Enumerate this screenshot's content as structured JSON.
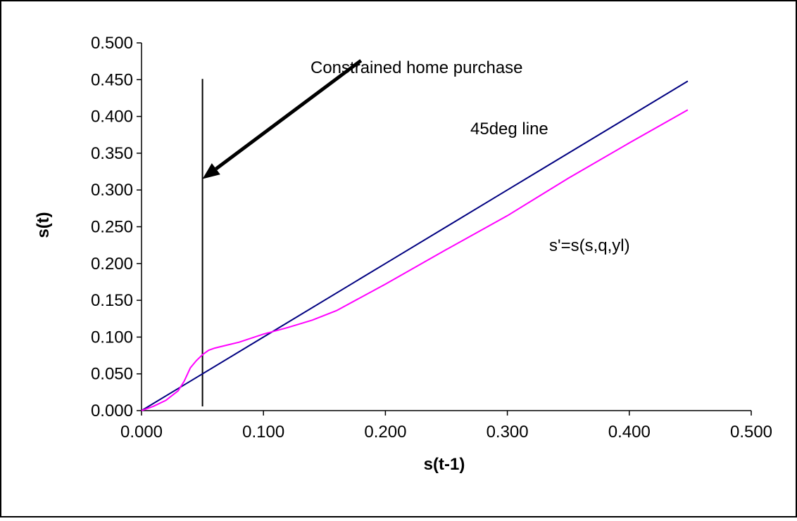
{
  "chart_data": {
    "type": "line",
    "xlabel": "s(t-1)",
    "ylabel": "s(t)",
    "xlim": [
      0,
      0.5
    ],
    "ylim": [
      0,
      0.5
    ],
    "x_ticks": [
      "0.000",
      "0.100",
      "0.200",
      "0.300",
      "0.400",
      "0.500"
    ],
    "y_ticks": [
      "0.000",
      "0.050",
      "0.100",
      "0.150",
      "0.200",
      "0.250",
      "0.300",
      "0.350",
      "0.400",
      "0.450",
      "0.500"
    ],
    "grid": false,
    "series": [
      {
        "name": "45deg line",
        "color": "#000080",
        "x": [
          0.0,
          0.1,
          0.2,
          0.3,
          0.4,
          0.448
        ],
        "y": [
          0.0,
          0.1,
          0.2,
          0.3,
          0.4,
          0.448
        ]
      },
      {
        "name": "s'=s(s,q,yl)",
        "color": "#ff00ff",
        "x": [
          0.0,
          0.01,
          0.02,
          0.03,
          0.035,
          0.04,
          0.045,
          0.05,
          0.055,
          0.06,
          0.07,
          0.08,
          0.1,
          0.12,
          0.14,
          0.16,
          0.2,
          0.25,
          0.3,
          0.35,
          0.4,
          0.448
        ],
        "y": [
          0.0,
          0.006,
          0.014,
          0.027,
          0.04,
          0.058,
          0.068,
          0.076,
          0.082,
          0.085,
          0.089,
          0.093,
          0.104,
          0.113,
          0.123,
          0.136,
          0.172,
          0.219,
          0.265,
          0.316,
          0.364,
          0.409
        ]
      }
    ],
    "reference_line": {
      "x": 0.05,
      "y_range": [
        0,
        0.451
      ],
      "color": "#000000"
    },
    "annotations": [
      {
        "text": "Constrained home purchase",
        "arrow_from": [
          0.18,
          0.476
        ],
        "arrow_to": [
          0.05,
          0.315
        ]
      },
      {
        "text": "45deg line"
      },
      {
        "text": "s'=s(s,q,yl)"
      }
    ]
  }
}
